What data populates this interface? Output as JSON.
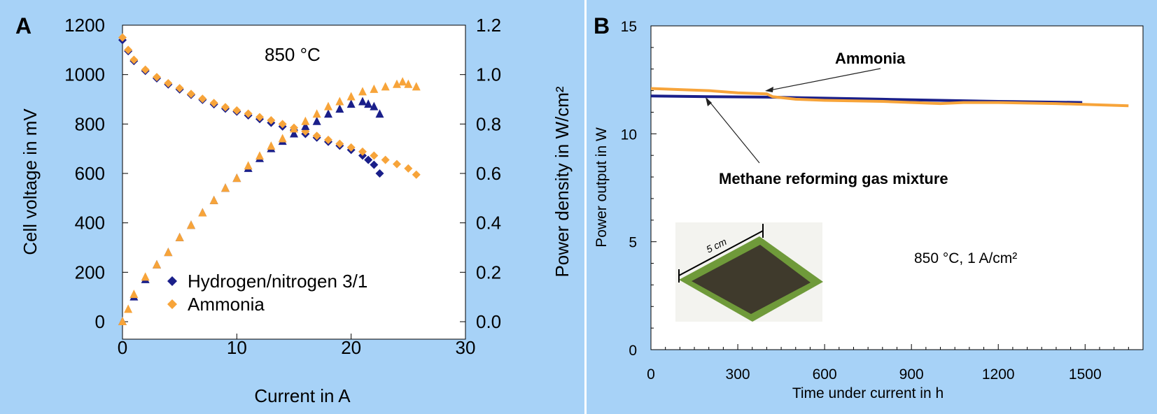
{
  "colors": {
    "background": "#a7d2f7",
    "ammonia": "#f7a43a",
    "hydrogen": "#1a1f8a",
    "methane": "#1a1f8a"
  },
  "chart_data": [
    {
      "panel_label": "A",
      "type": "scatter",
      "annotation": "850 °C",
      "xlabel": "Current in A",
      "ylabel": "Cell voltage in mV",
      "y2label": "Power density in W/cm²",
      "xlim": [
        0,
        30
      ],
      "ylim": [
        0,
        1200
      ],
      "y2lim": [
        0.0,
        1.2
      ],
      "x_ticks": [
        "0",
        "10",
        "20",
        "30"
      ],
      "y_ticks": [
        "0",
        "200",
        "400",
        "600",
        "800",
        "1000",
        "1200"
      ],
      "y2_ticks": [
        "0.0",
        "0.2",
        "0.4",
        "0.6",
        "0.8",
        "1.0",
        "1.2"
      ],
      "legend": [
        "Hydrogen/nitrogen 3/1",
        "Ammonia"
      ],
      "series": [
        {
          "name": "Hydrogen/nitrogen 3/1 voltage",
          "axis": "left",
          "marker": "diamond",
          "color": "hydrogen",
          "x": [
            0,
            0.5,
            1,
            2,
            3,
            4,
            5,
            6,
            7,
            8,
            9,
            10,
            11,
            12,
            13,
            14,
            15,
            16,
            17,
            18,
            19,
            20,
            21,
            21.5,
            22,
            22.5
          ],
          "y": [
            1140,
            1095,
            1055,
            1015,
            985,
            960,
            940,
            918,
            898,
            880,
            862,
            850,
            835,
            820,
            805,
            790,
            775,
            760,
            745,
            728,
            712,
            695,
            672,
            655,
            635,
            600
          ]
        },
        {
          "name": "Ammonia voltage",
          "axis": "left",
          "marker": "diamond",
          "color": "ammonia",
          "x": [
            0,
            0.5,
            1,
            2,
            3,
            4,
            5,
            6,
            7,
            8,
            9,
            10,
            11,
            12,
            13,
            14,
            15,
            16,
            17,
            18,
            19,
            20,
            21,
            22,
            23,
            24,
            25,
            25.7
          ],
          "y": [
            1150,
            1100,
            1060,
            1020,
            990,
            965,
            945,
            922,
            902,
            885,
            868,
            855,
            842,
            828,
            815,
            800,
            785,
            770,
            752,
            736,
            720,
            705,
            688,
            672,
            655,
            638,
            620,
            595
          ]
        },
        {
          "name": "Hydrogen/nitrogen 3/1 power",
          "axis": "right",
          "marker": "triangle",
          "color": "hydrogen",
          "x": [
            0,
            1,
            2,
            3,
            4,
            5,
            6,
            7,
            8,
            9,
            10,
            11,
            12,
            13,
            14,
            15,
            16,
            17,
            18,
            19,
            20,
            21,
            21.5,
            22,
            22.5
          ],
          "y": [
            0.0,
            0.1,
            0.17,
            0.23,
            0.28,
            0.34,
            0.39,
            0.44,
            0.49,
            0.54,
            0.58,
            0.62,
            0.66,
            0.7,
            0.73,
            0.76,
            0.79,
            0.81,
            0.84,
            0.86,
            0.88,
            0.89,
            0.88,
            0.87,
            0.84
          ]
        },
        {
          "name": "Ammonia power",
          "axis": "right",
          "marker": "triangle",
          "color": "ammonia",
          "x": [
            0,
            0.5,
            1,
            2,
            3,
            4,
            5,
            6,
            7,
            8,
            9,
            10,
            11,
            12,
            13,
            14,
            15,
            16,
            17,
            18,
            19,
            20,
            21,
            22,
            23,
            24,
            24.5,
            25,
            25.7
          ],
          "y": [
            0.0,
            0.05,
            0.11,
            0.18,
            0.23,
            0.28,
            0.34,
            0.39,
            0.44,
            0.49,
            0.54,
            0.58,
            0.63,
            0.67,
            0.71,
            0.74,
            0.78,
            0.81,
            0.84,
            0.87,
            0.89,
            0.91,
            0.93,
            0.94,
            0.95,
            0.96,
            0.97,
            0.96,
            0.95
          ]
        }
      ]
    },
    {
      "panel_label": "B",
      "type": "line",
      "xlabel": "Time under current in h",
      "ylabel": "Power output in W",
      "xlim": [
        0,
        1700
      ],
      "ylim": [
        0,
        15
      ],
      "x_ticks": [
        "0",
        "300",
        "600",
        "900",
        "1200",
        "1500"
      ],
      "y_ticks": [
        "0",
        "5",
        "10",
        "15"
      ],
      "annotations": {
        "ammonia": "Ammonia",
        "methane": "Methane reforming gas mixture",
        "conditions": "850 °C, 1 A/cm²",
        "scale": "5 cm"
      },
      "series": [
        {
          "name": "Methane reforming gas mixture",
          "color": "methane",
          "x": [
            0,
            200,
            400,
            600,
            800,
            1000,
            1200,
            1490
          ],
          "y": [
            11.75,
            11.72,
            11.7,
            11.65,
            11.6,
            11.55,
            11.5,
            11.45
          ]
        },
        {
          "name": "Ammonia",
          "color": "ammonia",
          "x": [
            0,
            100,
            200,
            300,
            400,
            420,
            500,
            600,
            800,
            1000,
            1080,
            1200,
            1400,
            1650
          ],
          "y": [
            12.1,
            12.05,
            12.0,
            11.9,
            11.85,
            11.72,
            11.6,
            11.55,
            11.5,
            11.4,
            11.45,
            11.45,
            11.4,
            11.3
          ]
        }
      ]
    }
  ]
}
